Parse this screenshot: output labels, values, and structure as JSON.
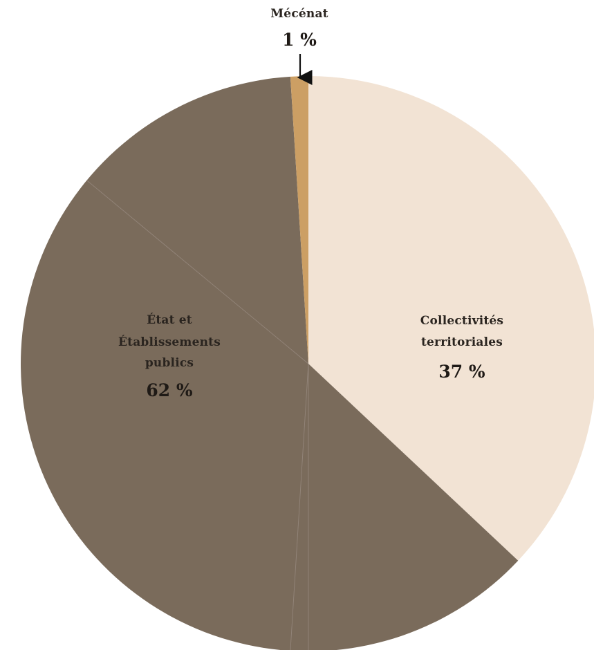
{
  "chart_data": {
    "type": "pie",
    "slices": [
      {
        "label_lines": [
          "Collectivités",
          "territoriales"
        ],
        "value_label": "37 %",
        "value": 37,
        "color": "#f2e3d4"
      },
      {
        "label_lines": [
          "État et",
          "Établissements",
          "publics"
        ],
        "value_label": "62 %",
        "value": 62,
        "color": "#7a6b5b",
        "sub_values": [
          13,
          1,
          35,
          13
        ]
      },
      {
        "label_lines": [
          "Mécénat"
        ],
        "value_label": "1 %",
        "value": 1,
        "color": "#cc9f64"
      }
    ],
    "start_angle_deg": 0,
    "direction": "clockwise",
    "divider_color": "#93857a"
  }
}
